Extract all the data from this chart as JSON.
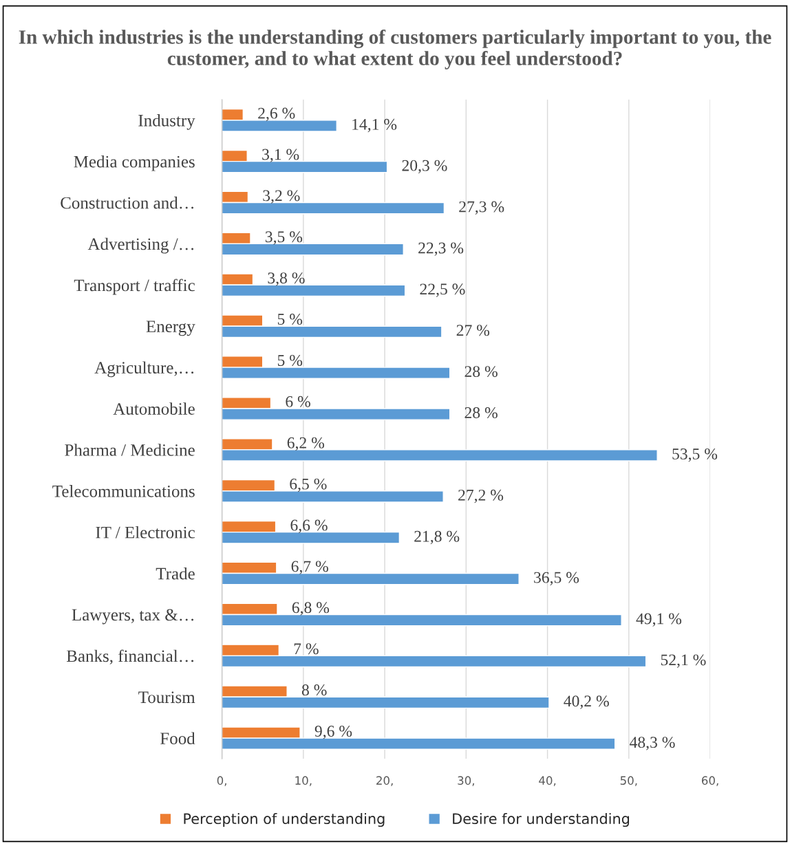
{
  "chart_data": {
    "type": "bar",
    "orientation": "horizontal",
    "title": "In which industries is the understanding of customers particularly important to you, the customer, and to what extent do you feel understood?",
    "categories": [
      "Industry",
      "Media companies",
      "Construction and…",
      "Advertising /…",
      "Transport / traffic",
      "Energy",
      "Agriculture,…",
      "Automobile",
      "Pharma / Medicine",
      "Telecommunications",
      "IT / Electronic",
      "Trade",
      "Lawyers, tax &…",
      "Banks, financial…",
      "Tourism",
      "Food"
    ],
    "series": [
      {
        "name": "Perception of understanding",
        "color": "#ed7d31",
        "values": [
          2.6,
          3.1,
          3.2,
          3.5,
          3.8,
          5,
          5,
          6,
          6.2,
          6.5,
          6.6,
          6.7,
          6.8,
          7,
          8,
          9.6
        ],
        "value_labels": [
          "2,6 %",
          "3,1 %",
          "3,2 %",
          "3,5 %",
          "3,8 %",
          "5 %",
          "5 %",
          "6 %",
          "6,2 %",
          "6,5 %",
          "6,6 %",
          "6,7 %",
          "6,8 %",
          "7 %",
          "8 %",
          "9,6 %"
        ]
      },
      {
        "name": "Desire for understanding",
        "color": "#5b9bd5",
        "values": [
          14.1,
          20.3,
          27.3,
          22.3,
          22.5,
          27,
          28,
          28,
          53.5,
          27.2,
          21.8,
          36.5,
          49.1,
          52.1,
          40.2,
          48.3
        ],
        "value_labels": [
          "14,1 %",
          "20,3 %",
          "27,3 %",
          "22,3 %",
          "22,5 %",
          "27 %",
          "28 %",
          "28 %",
          "53,5 %",
          "27,2 %",
          "21,8 %",
          "36,5 %",
          "49,1 %",
          "52,1 %",
          "40,2 %",
          "48,3 %"
        ]
      }
    ],
    "xlim": [
      0,
      60
    ],
    "xticks": [
      {
        "value": 0,
        "label": "0,"
      },
      {
        "value": 10,
        "label": "10,"
      },
      {
        "value": 20,
        "label": "20,"
      },
      {
        "value": 30,
        "label": "30,"
      },
      {
        "value": 40,
        "label": "40,"
      },
      {
        "value": 50,
        "label": "50,"
      },
      {
        "value": 60,
        "label": "60,"
      }
    ],
    "grid": "x",
    "legend": "bottom"
  }
}
